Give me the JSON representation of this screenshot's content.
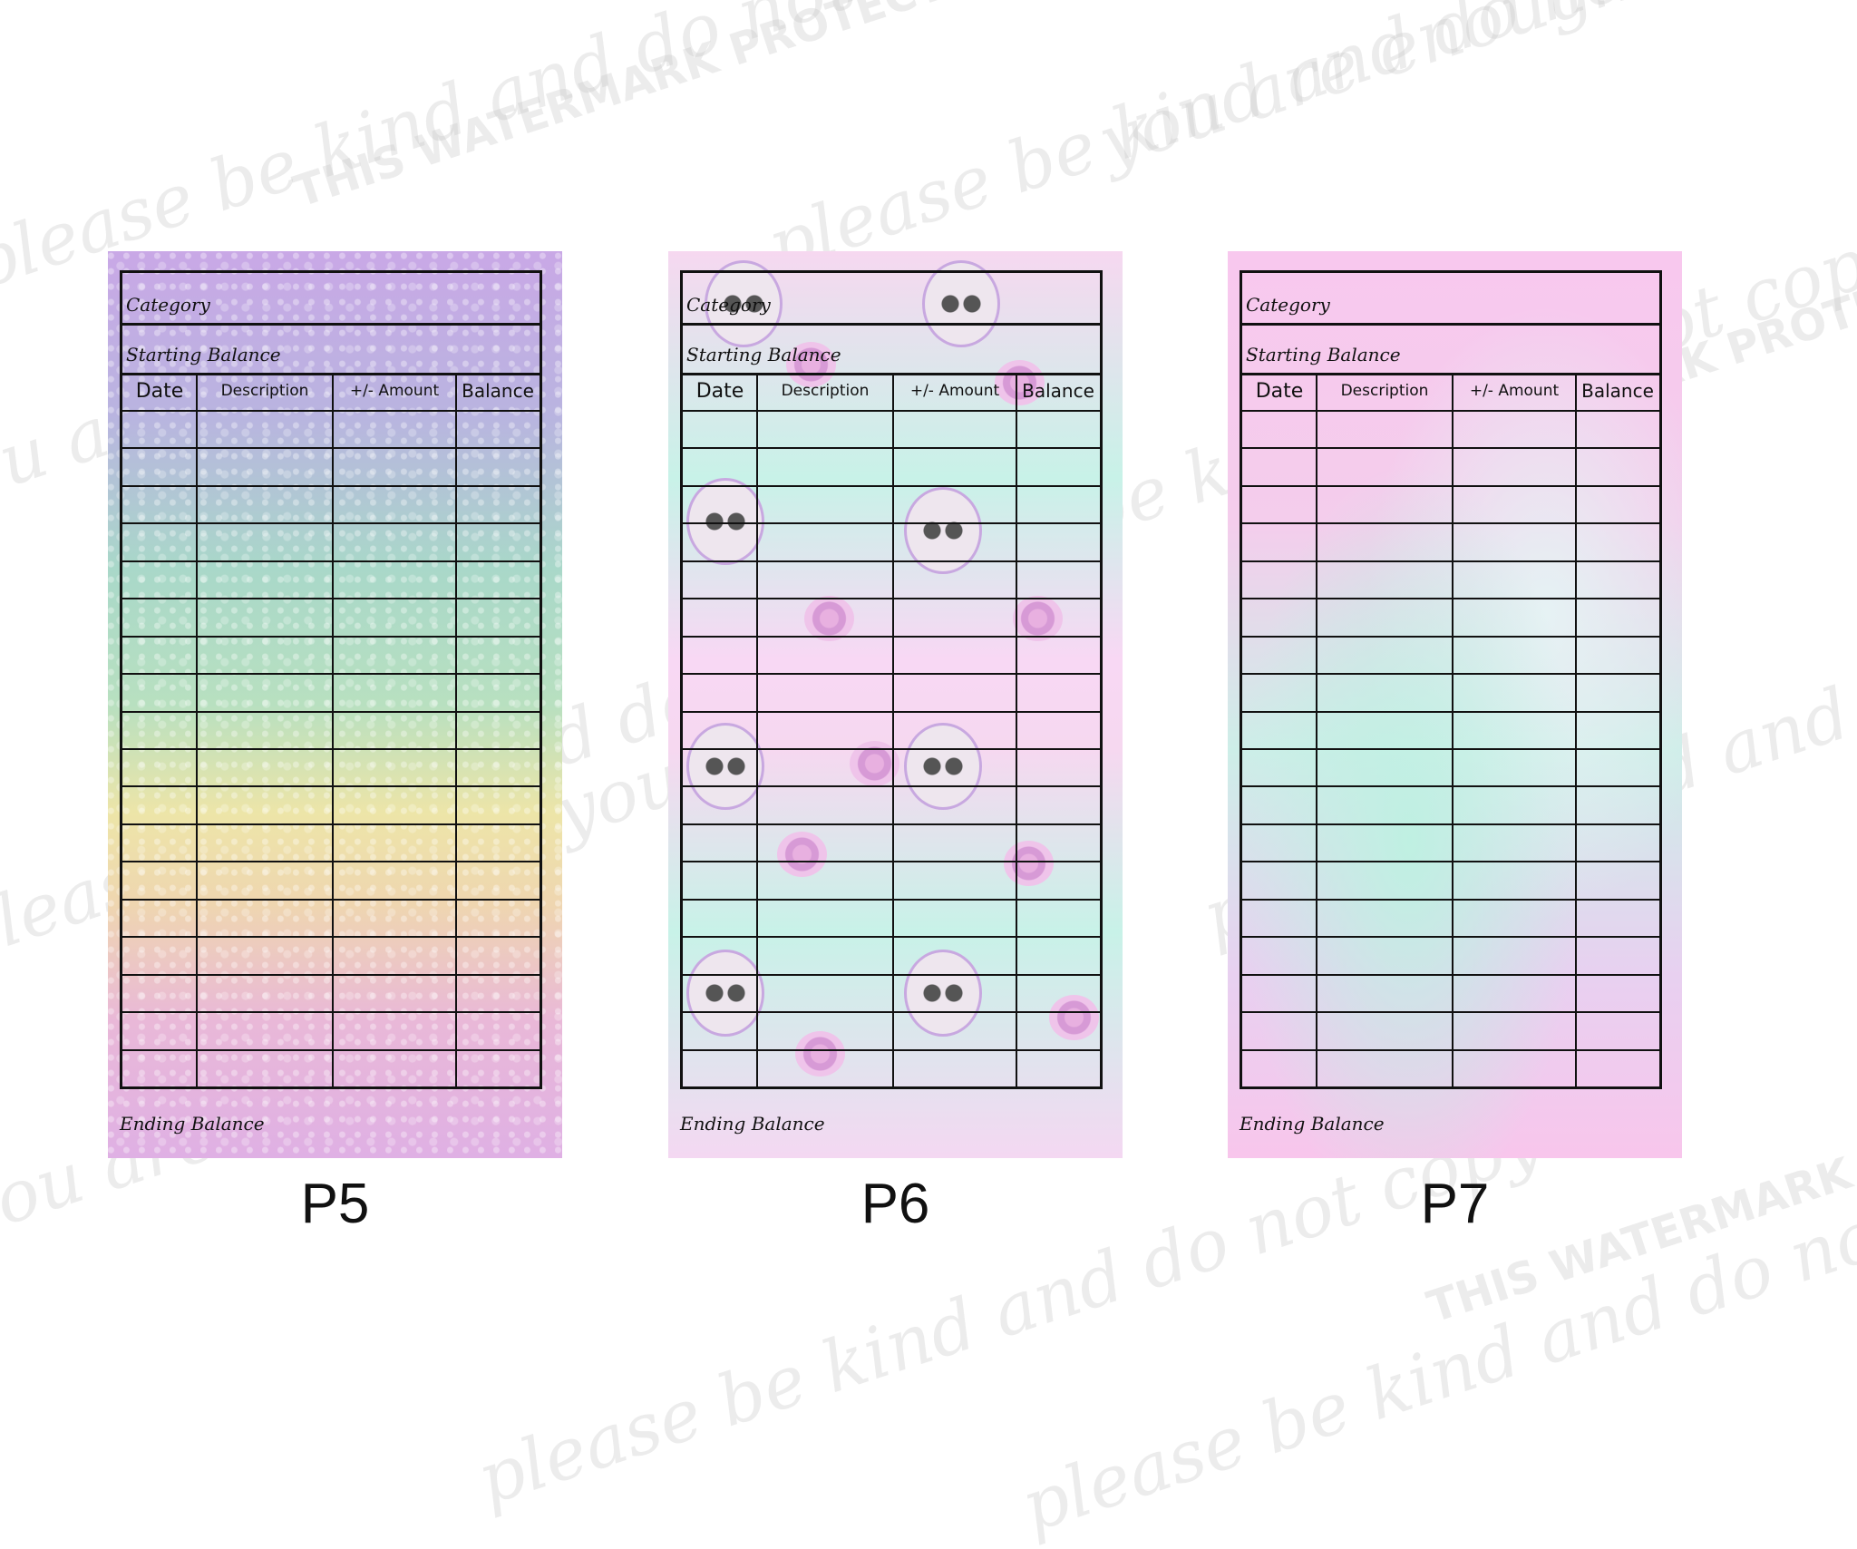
{
  "watermark": {
    "lines": [
      "please be kind and do not copy",
      "you are enough",
      "THIS WATERMARK PROTECTS MY WORK"
    ]
  },
  "table": {
    "category_label": "Category",
    "starting_balance_label": "Starting Balance",
    "columns": [
      "Date",
      "Description",
      "+/- Amount",
      "Balance"
    ],
    "row_count": 18,
    "ending_balance_label": "Ending Balance"
  },
  "pages": [
    {
      "label": "P5",
      "theme": "pastel rainbow glitter"
    },
    {
      "label": "P6",
      "theme": "pastel skulls and roses"
    },
    {
      "label": "P7",
      "theme": "pastel galaxy"
    }
  ],
  "colors": {
    "line": "#111111",
    "lavender": "#c9a8e6",
    "mint": "#c8f2e8",
    "pink": "#f8c8ee"
  }
}
